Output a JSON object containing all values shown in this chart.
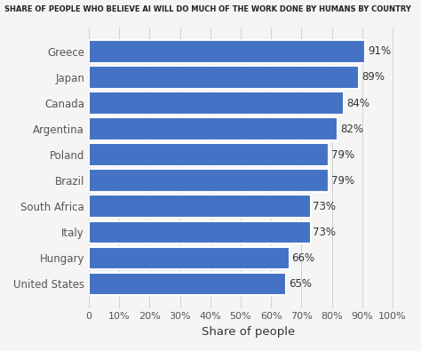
{
  "title": "SHARE OF PEOPLE WHO BELIEVE AI WILL DO MUCH OF THE WORK DONE BY HUMANS BY COUNTRY",
  "countries": [
    "Greece",
    "Japan",
    "Canada",
    "Argentina",
    "Poland",
    "Brazil",
    "South Africa",
    "Italy",
    "Hungary",
    "United States"
  ],
  "values": [
    91,
    89,
    84,
    82,
    79,
    79,
    73,
    73,
    66,
    65
  ],
  "bar_color": "#4472C4",
  "xlabel": "Share of people",
  "xlim": [
    0,
    100
  ],
  "xticks": [
    0,
    10,
    20,
    30,
    40,
    50,
    60,
    70,
    80,
    90,
    100
  ],
  "background_color": "#f5f5f5",
  "title_fontsize": 6.0,
  "label_fontsize": 8.5,
  "tick_fontsize": 8.0,
  "xlabel_fontsize": 9.5,
  "value_fontsize": 8.5
}
